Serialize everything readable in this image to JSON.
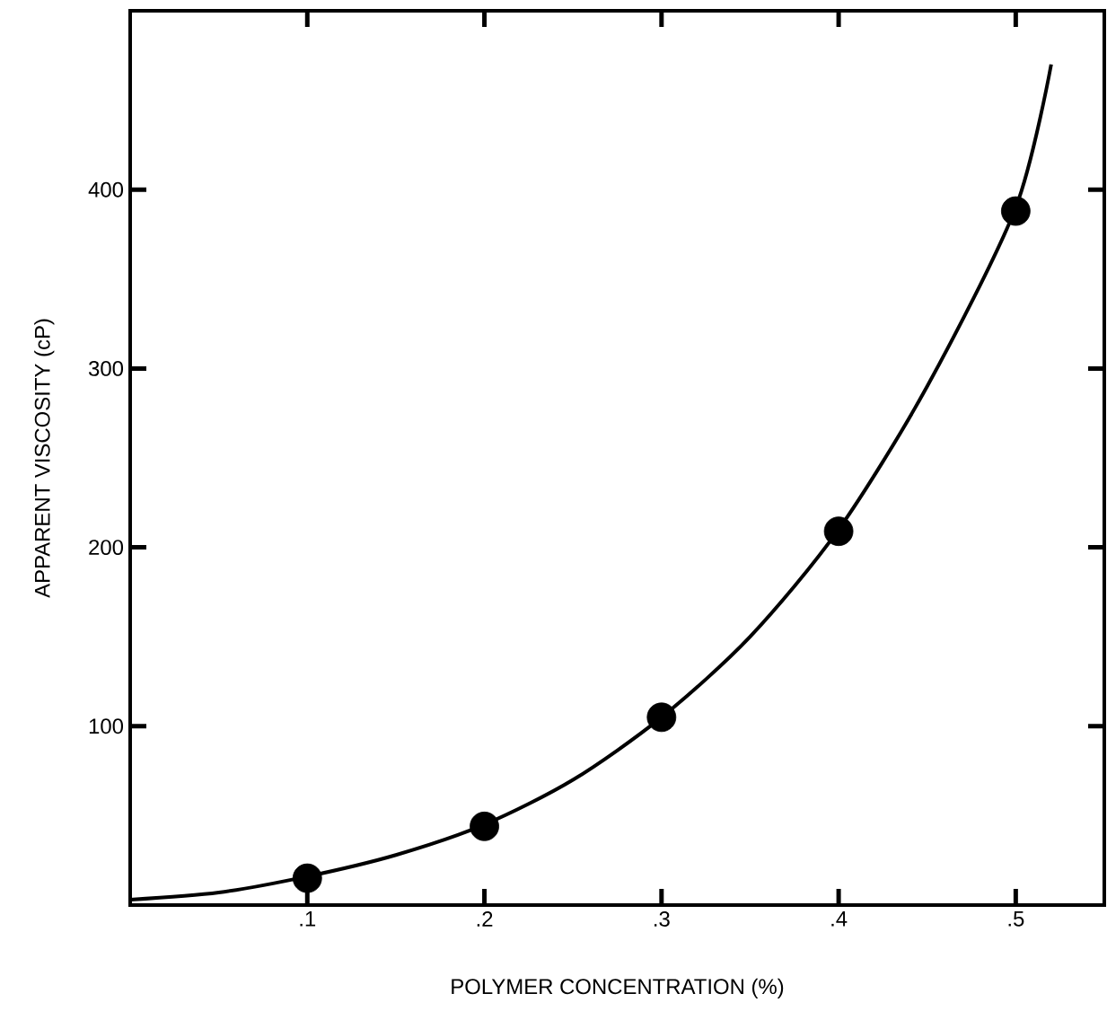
{
  "chart_data": {
    "type": "scatter",
    "xlabel": "POLYMER CONCENTRATION (%)",
    "ylabel": "APPARENT VISCOSITY (cP)",
    "xlim": [
      0,
      0.55
    ],
    "ylim": [
      0,
      500
    ],
    "xticks": [
      {
        "value": 0.1,
        "label": ".1"
      },
      {
        "value": 0.2,
        "label": ".2"
      },
      {
        "value": 0.3,
        "label": ".3"
      },
      {
        "value": 0.4,
        "label": ".4"
      },
      {
        "value": 0.5,
        "label": ".5"
      }
    ],
    "yticks": [
      100,
      200,
      300,
      400
    ],
    "marker": "circle",
    "series": [
      {
        "color": "#000000",
        "x": [
          0.1,
          0.2,
          0.3,
          0.4,
          0.5
        ],
        "values": [
          15,
          44,
          105,
          209,
          388
        ]
      },
      {
        "type": "line",
        "color": "#000000",
        "marker": "none",
        "line_style": "solid",
        "x": [
          0.0,
          0.05,
          0.1,
          0.15,
          0.2,
          0.25,
          0.3,
          0.35,
          0.4,
          0.45,
          0.5,
          0.52
        ],
        "values": [
          3,
          7,
          16,
          28,
          45,
          70,
          105,
          150,
          210,
          290,
          390,
          470
        ]
      }
    ]
  }
}
